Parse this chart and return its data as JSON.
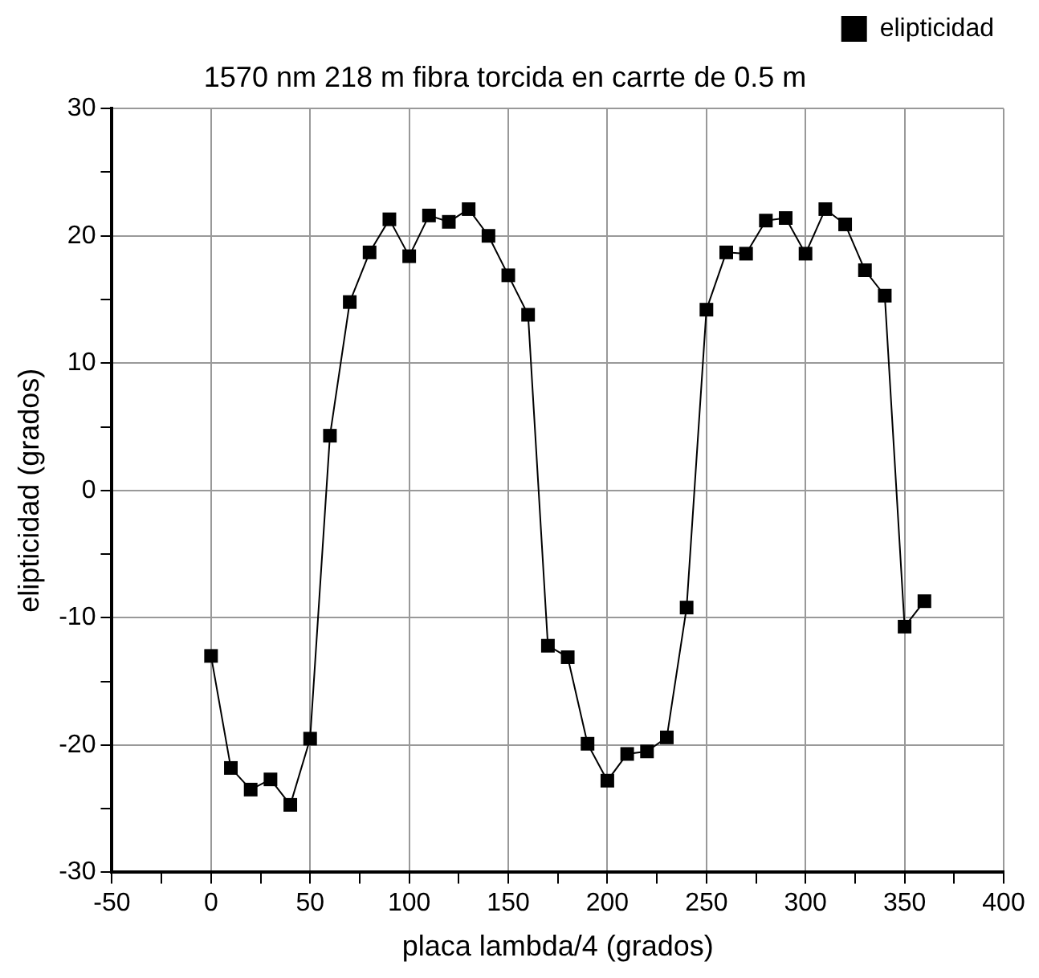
{
  "chart_data": {
    "type": "line",
    "title": "1570 nm 218 m fibra torcida en carrte de 0.5 m",
    "xlabel": "placa lambda/4 (grados)",
    "ylabel": "elipticidad (grados)",
    "x": [
      0,
      10,
      20,
      30,
      40,
      50,
      60,
      70,
      80,
      90,
      100,
      110,
      120,
      130,
      140,
      150,
      160,
      170,
      180,
      190,
      200,
      210,
      220,
      230,
      240,
      250,
      260,
      270,
      280,
      290,
      300,
      310,
      320,
      330,
      340,
      350,
      360
    ],
    "series": [
      {
        "name": "elipticidad",
        "color": "#000000",
        "values": [
          -13,
          -21.8,
          -23.5,
          -22.7,
          -24.7,
          -19.5,
          4.3,
          14.8,
          18.7,
          21.3,
          18.4,
          21.6,
          21.1,
          22.1,
          20,
          16.9,
          13.8,
          -12.2,
          -13.1,
          -19.9,
          -22.8,
          -20.7,
          -20.5,
          -19.4,
          -9.2,
          14.2,
          18.7,
          18.6,
          21.2,
          21.4,
          18.6,
          22.1,
          20.9,
          17.3,
          15.3,
          -10.7,
          -8.7
        ]
      }
    ],
    "xlim": [
      -50,
      400
    ],
    "xticks": [
      -50,
      {
        "value": -25,
        "label": null
      },
      0,
      {
        "value": 25,
        "label": null
      },
      50,
      {
        "value": 75,
        "label": null
      },
      100,
      {
        "value": 125,
        "label": null
      },
      150,
      {
        "value": 175,
        "label": null
      },
      200,
      {
        "value": 225,
        "label": null
      },
      250,
      {
        "value": 275,
        "label": null
      },
      300,
      {
        "value": 325,
        "label": null
      },
      350,
      {
        "value": 375,
        "label": null
      },
      400
    ],
    "ylim": [
      -30,
      30
    ],
    "yticks": [
      -30,
      {
        "value": -25,
        "label": null
      },
      -20,
      {
        "value": -15,
        "label": null
      },
      -10,
      {
        "value": -5,
        "label": null
      },
      0,
      {
        "value": 5,
        "label": null
      },
      10,
      {
        "value": 15,
        "label": null
      },
      20,
      {
        "value": 25,
        "label": null
      },
      30
    ],
    "grid": true,
    "legend": "top right",
    "marker": "square",
    "line_style": "solid"
  }
}
